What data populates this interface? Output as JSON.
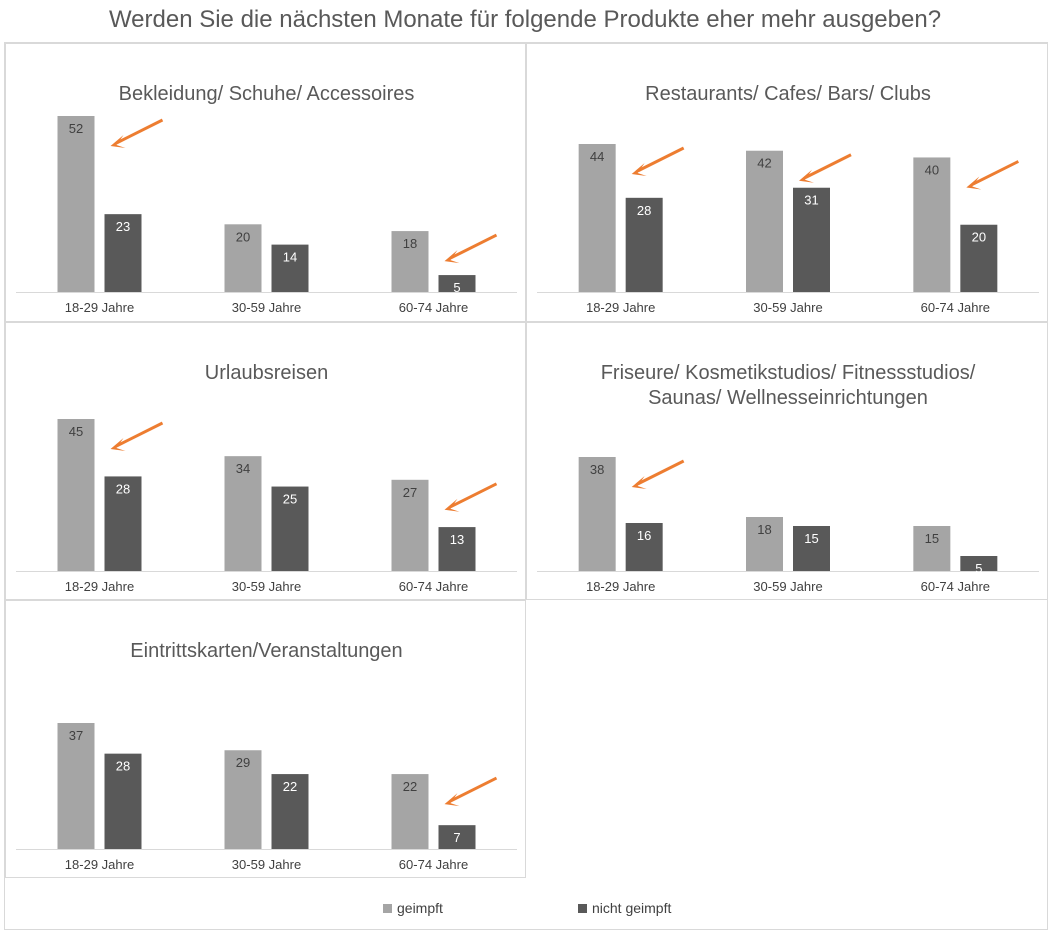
{
  "title": "Werden Sie die nächsten Monate für folgende Produkte eher mehr ausgeben?",
  "legend": [
    {
      "name": "geimpft",
      "color": "#a5a5a5"
    },
    {
      "name": "nicht geimpft",
      "color": "#595959"
    }
  ],
  "colors": {
    "accent_arrow": "#ed7d31",
    "axis": "#d9d9d9",
    "label_text": "#404040"
  },
  "chart_data": [
    {
      "type": "bar",
      "title": [
        "Bekleidung/ Schuhe/ Accessoires"
      ],
      "categories": [
        "18-29 Jahre",
        "30-59 Jahre",
        "60-74 Jahre"
      ],
      "series": [
        {
          "name": "geimpft",
          "values": [
            52,
            20,
            18
          ]
        },
        {
          "name": "nicht geimpft",
          "values": [
            23,
            14,
            5
          ]
        }
      ],
      "highlighted_categories": [
        0,
        2
      ],
      "grid": false
    },
    {
      "type": "bar",
      "title": [
        "Restaurants/ Cafes/ Bars/ Clubs"
      ],
      "categories": [
        "18-29 Jahre",
        "30-59 Jahre",
        "60-74 Jahre"
      ],
      "series": [
        {
          "name": "geimpft",
          "values": [
            44,
            42,
            40
          ]
        },
        {
          "name": "nicht geimpft",
          "values": [
            28,
            31,
            20
          ]
        }
      ],
      "highlighted_categories": [
        0,
        1,
        2
      ],
      "grid": false
    },
    {
      "type": "bar",
      "title": [
        "Urlaubsreisen"
      ],
      "categories": [
        "18-29 Jahre",
        "30-59 Jahre",
        "60-74 Jahre"
      ],
      "series": [
        {
          "name": "geimpft",
          "values": [
            45,
            34,
            27
          ]
        },
        {
          "name": "nicht geimpft",
          "values": [
            28,
            25,
            13
          ]
        }
      ],
      "highlighted_categories": [
        0,
        2
      ],
      "grid": false
    },
    {
      "type": "bar",
      "title": [
        "Friseure/ Kosmetikstudios/ Fitnessstudios/",
        "Saunas/ Wellnesseinrichtungen"
      ],
      "categories": [
        "18-29 Jahre",
        "30-59 Jahre",
        "60-74 Jahre"
      ],
      "series": [
        {
          "name": "geimpft",
          "values": [
            38,
            18,
            15
          ]
        },
        {
          "name": "nicht geimpft",
          "values": [
            16,
            15,
            5
          ]
        }
      ],
      "highlighted_categories": [
        0
      ],
      "grid": false
    },
    {
      "type": "bar",
      "title": [
        "Eintrittskarten/Veranstaltungen"
      ],
      "categories": [
        "18-29 Jahre",
        "30-59 Jahre",
        "60-74 Jahre"
      ],
      "series": [
        {
          "name": "geimpft",
          "values": [
            37,
            29,
            22
          ]
        },
        {
          "name": "nicht geimpft",
          "values": [
            28,
            22,
            7
          ]
        }
      ],
      "highlighted_categories": [
        2
      ],
      "grid": false
    }
  ]
}
